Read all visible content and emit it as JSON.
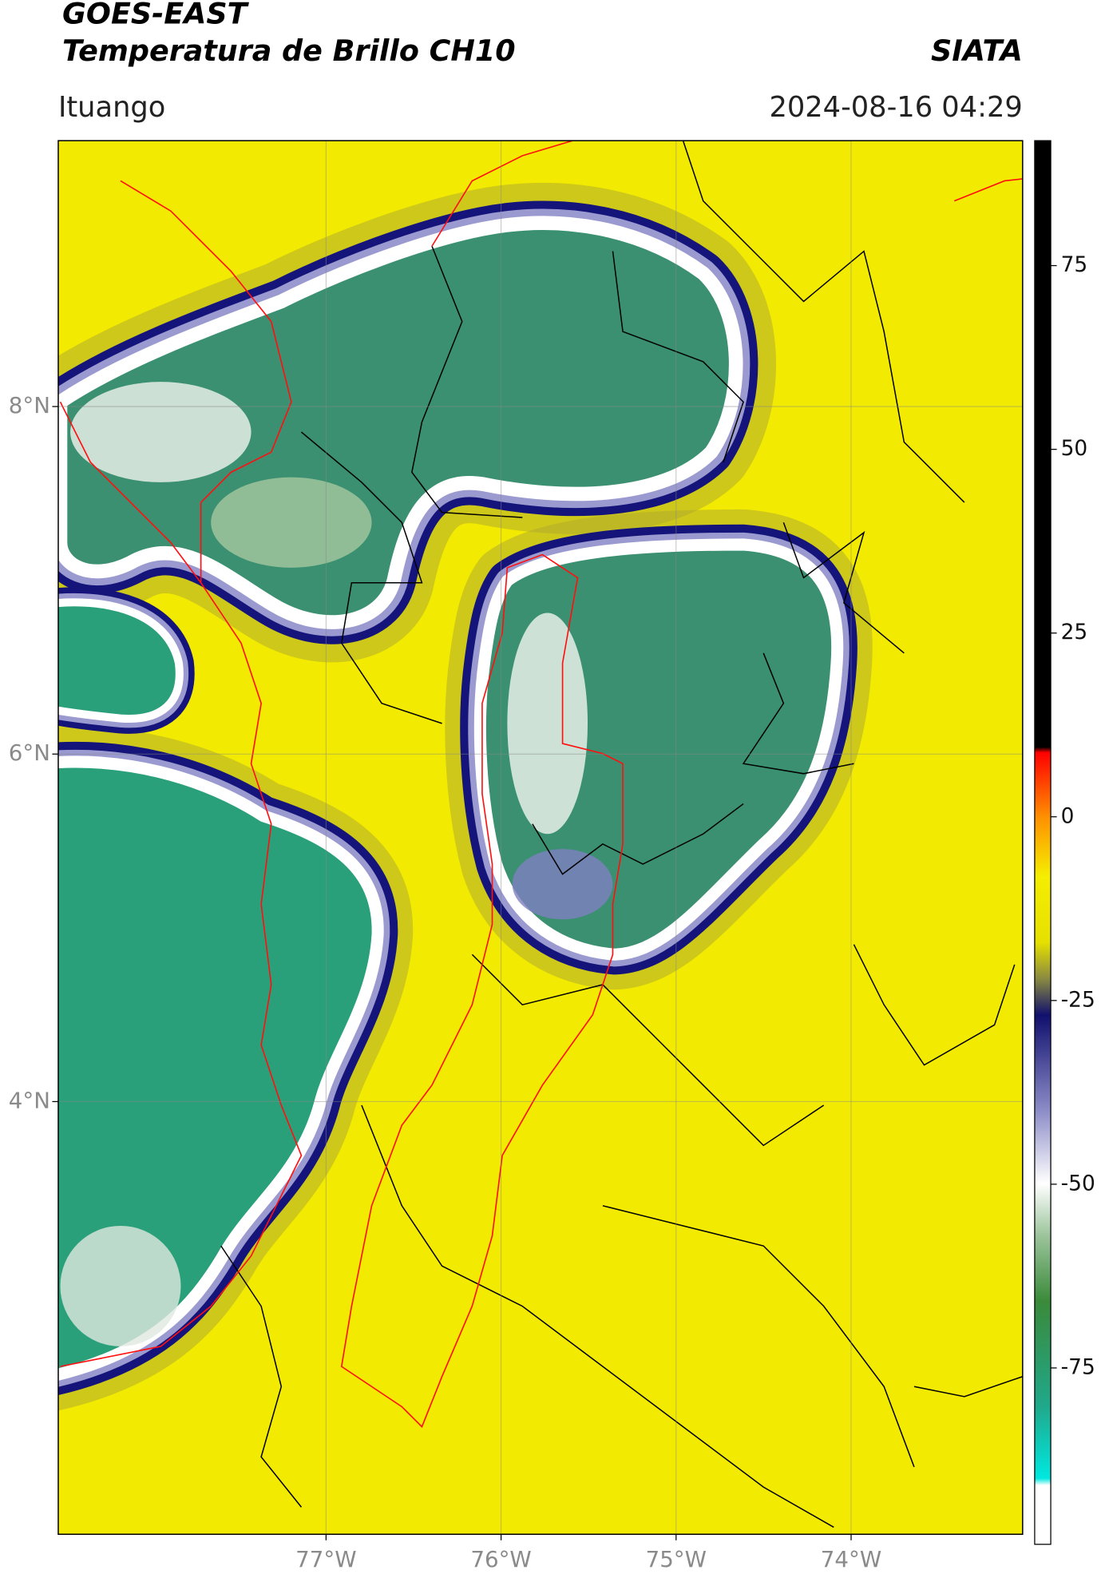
{
  "header": {
    "title": "GOES-EAST",
    "subtitle": "Temperatura de Brillo CH10",
    "source": "SIATA",
    "location": "Ituango",
    "datetime": "2024-08-16 04:29"
  },
  "map": {
    "xlim": [
      -78.53,
      -73.02
    ],
    "ylim": [
      1.51,
      9.53
    ],
    "xticks": [
      {
        "value": -77,
        "label": "77°W"
      },
      {
        "value": -76,
        "label": "76°W"
      },
      {
        "value": -75,
        "label": "75°W"
      },
      {
        "value": -74,
        "label": "74°W"
      }
    ],
    "yticks": [
      {
        "value": 8,
        "label": "8°N"
      },
      {
        "value": 6,
        "label": "6°N"
      },
      {
        "value": 4,
        "label": "4°N"
      }
    ],
    "grid": true
  },
  "colorbar": {
    "ylim": [
      -99,
      92
    ],
    "yticks": [
      75,
      50,
      25,
      0,
      -25,
      -50,
      -75
    ]
  }
}
